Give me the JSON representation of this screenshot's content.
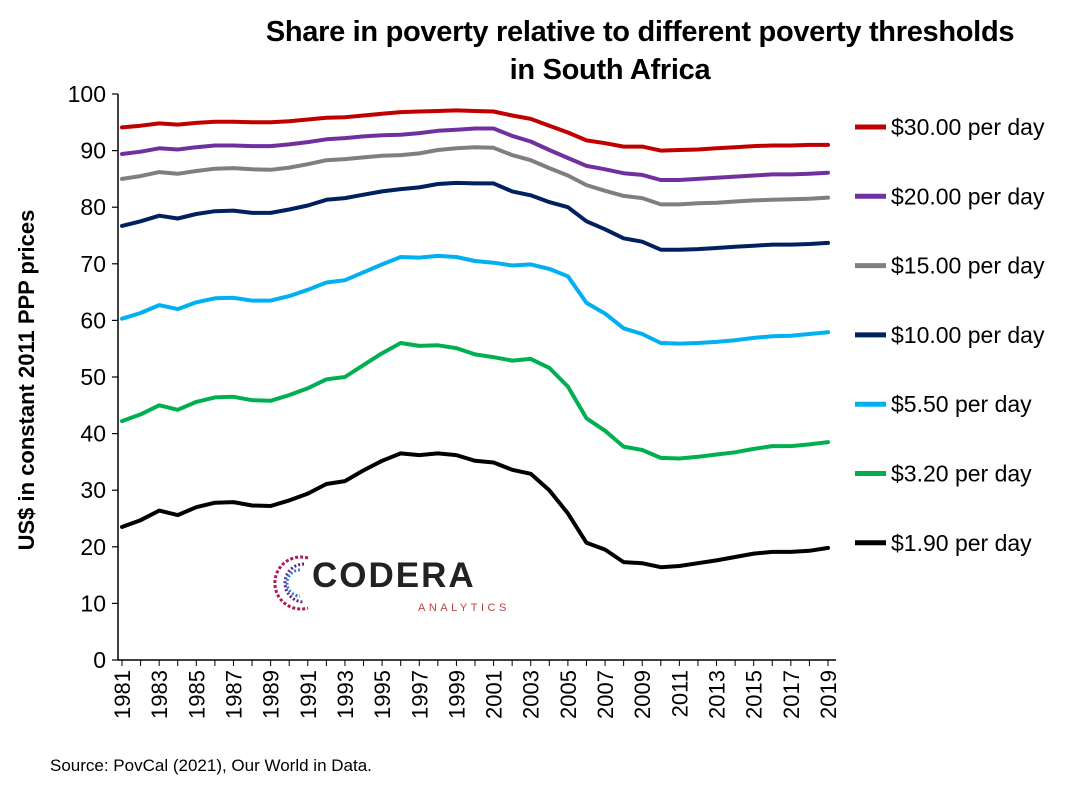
{
  "chart_data": {
    "type": "line",
    "title": "Share in poverty relative to different poverty thresholds",
    "title_line2": "in South Africa",
    "ylabel": "US$ in constant 2011 PPP prices",
    "xlabel": "",
    "ylim": [
      0,
      100
    ],
    "yticks": [
      0,
      10,
      20,
      30,
      40,
      50,
      60,
      70,
      80,
      90,
      100
    ],
    "x": [
      1981,
      1982,
      1983,
      1984,
      1985,
      1986,
      1987,
      1988,
      1989,
      1990,
      1991,
      1992,
      1993,
      1994,
      1995,
      1996,
      1997,
      1998,
      1999,
      2000,
      2001,
      2002,
      2003,
      2004,
      2005,
      2006,
      2007,
      2008,
      2009,
      2010,
      2011,
      2012,
      2013,
      2014,
      2015,
      2016,
      2017,
      2018,
      2019
    ],
    "xtick_labels": [
      "1981",
      "1983",
      "1985",
      "1987",
      "1989",
      "1991",
      "1993",
      "1995",
      "1997",
      "1999",
      "2001",
      "2003",
      "2005",
      "2007",
      "2009",
      "2011",
      "2013",
      "2015",
      "2017",
      "2019"
    ],
    "grid": false,
    "legend_position": "right",
    "series": [
      {
        "name": "$30.00 per day",
        "color": "#c00000",
        "values": [
          94.1,
          94.4,
          94.8,
          94.6,
          94.9,
          95.1,
          95.1,
          95.0,
          95.0,
          95.2,
          95.5,
          95.8,
          95.9,
          96.2,
          96.5,
          96.8,
          96.9,
          97.0,
          97.1,
          97.0,
          96.9,
          96.2,
          95.6,
          94.4,
          93.2,
          91.8,
          91.3,
          90.7,
          90.7,
          90.0,
          90.1,
          90.2,
          90.4,
          90.6,
          90.8,
          90.9,
          90.9,
          91.0,
          91.0
        ]
      },
      {
        "name": "$20.00 per day",
        "color": "#7030a0",
        "values": [
          89.4,
          89.8,
          90.4,
          90.2,
          90.6,
          90.9,
          90.9,
          90.8,
          90.8,
          91.1,
          91.5,
          92.0,
          92.2,
          92.5,
          92.7,
          92.8,
          93.1,
          93.5,
          93.7,
          93.9,
          93.9,
          92.6,
          91.6,
          90.1,
          88.7,
          87.3,
          86.7,
          86.0,
          85.7,
          84.8,
          84.8,
          85.0,
          85.2,
          85.4,
          85.6,
          85.8,
          85.8,
          85.9,
          86.1
        ]
      },
      {
        "name": "$15.00 per day",
        "color": "#7f7f7f",
        "values": [
          85.0,
          85.5,
          86.2,
          85.9,
          86.4,
          86.8,
          86.9,
          86.7,
          86.6,
          87.0,
          87.6,
          88.3,
          88.5,
          88.8,
          89.1,
          89.2,
          89.5,
          90.1,
          90.4,
          90.6,
          90.5,
          89.2,
          88.3,
          86.9,
          85.6,
          83.9,
          82.9,
          82.0,
          81.6,
          80.5,
          80.5,
          80.7,
          80.8,
          81.0,
          81.2,
          81.3,
          81.4,
          81.5,
          81.7
        ]
      },
      {
        "name": "$10.00 per day",
        "color": "#002060",
        "values": [
          76.7,
          77.5,
          78.5,
          78.0,
          78.8,
          79.3,
          79.4,
          79.0,
          79.0,
          79.6,
          80.3,
          81.3,
          81.6,
          82.2,
          82.8,
          83.2,
          83.5,
          84.1,
          84.3,
          84.2,
          84.2,
          82.8,
          82.1,
          80.9,
          80.0,
          77.5,
          76.1,
          74.5,
          73.9,
          72.5,
          72.5,
          72.6,
          72.8,
          73.0,
          73.2,
          73.4,
          73.4,
          73.5,
          73.7
        ]
      },
      {
        "name": "$5.50 per day",
        "color": "#00b0f0",
        "values": [
          60.3,
          61.3,
          62.7,
          62.0,
          63.2,
          63.9,
          64.0,
          63.5,
          63.5,
          64.3,
          65.4,
          66.7,
          67.1,
          68.5,
          69.9,
          71.2,
          71.1,
          71.4,
          71.2,
          70.5,
          70.2,
          69.7,
          69.9,
          69.1,
          67.8,
          63.1,
          61.2,
          58.6,
          57.6,
          56.0,
          55.9,
          56.0,
          56.2,
          56.5,
          56.9,
          57.2,
          57.3,
          57.6,
          57.9
        ]
      },
      {
        "name": "$3.20 per day",
        "color": "#00b050",
        "values": [
          42.2,
          43.4,
          45.0,
          44.2,
          45.6,
          46.4,
          46.5,
          45.9,
          45.8,
          46.8,
          48.0,
          49.6,
          50.0,
          52.1,
          54.2,
          56.0,
          55.5,
          55.6,
          55.1,
          54.0,
          53.5,
          52.9,
          53.2,
          51.6,
          48.3,
          42.7,
          40.5,
          37.7,
          37.1,
          35.7,
          35.6,
          35.9,
          36.3,
          36.7,
          37.3,
          37.8,
          37.8,
          38.1,
          38.5
        ]
      },
      {
        "name": "$1.90 per day",
        "color": "#000000",
        "values": [
          23.5,
          24.7,
          26.4,
          25.6,
          27.0,
          27.8,
          27.9,
          27.3,
          27.2,
          28.2,
          29.4,
          31.1,
          31.6,
          33.5,
          35.2,
          36.5,
          36.2,
          36.5,
          36.2,
          35.2,
          34.9,
          33.6,
          32.9,
          30.0,
          25.9,
          20.7,
          19.5,
          17.3,
          17.1,
          16.4,
          16.6,
          17.1,
          17.6,
          18.2,
          18.8,
          19.1,
          19.1,
          19.3,
          19.8
        ]
      }
    ]
  },
  "logo": {
    "name": "CODERA",
    "sub": "ANALYTICS"
  },
  "source": "Source: PovCal (2021), Our World in Data."
}
